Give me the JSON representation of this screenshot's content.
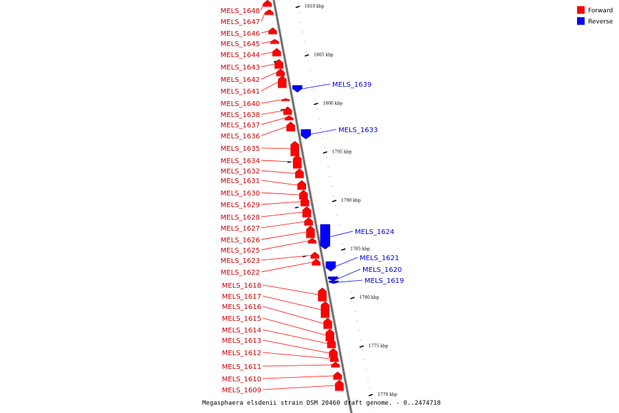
{
  "colors": {
    "forward": "#ff0000",
    "reverse": "#0000ff",
    "label_forward": "#cc0000",
    "label_reverse": "#0000cc",
    "backbone": "#888888"
  },
  "legend": [
    {
      "name": "Forward",
      "color": "#ff0000"
    },
    {
      "name": "Reverse",
      "color": "#0000ff"
    }
  ],
  "caption": "Megasphaera elsdenii strain DSM 20460 draft genome. - 0..2474718",
  "ticks": [
    {
      "label": "1810 kbp",
      "kbp": 1810
    },
    {
      "label": "1805 kbp",
      "kbp": 1805
    },
    {
      "label": "1800 kbp",
      "kbp": 1800
    },
    {
      "label": "1795 kbp",
      "kbp": 1795
    },
    {
      "label": "1790 kbp",
      "kbp": 1790
    },
    {
      "label": "1785 kbp",
      "kbp": 1785
    },
    {
      "label": "1780 kbp",
      "kbp": 1780
    },
    {
      "label": "1775 kbp",
      "kbp": 1775
    },
    {
      "label": "1770 kbp",
      "kbp": 1770
    }
  ],
  "forward_genes": [
    "MELS_1648",
    "MELS_1647",
    "MELS_1646",
    "MELS_1645",
    "MELS_1644",
    "MELS_1643",
    "MELS_1642",
    "MELS_1641",
    "MELS_1640",
    "MELS_1638",
    "MELS_1637",
    "MELS_1636",
    "MELS_1635",
    "MELS_1634",
    "MELS_1632",
    "MELS_1631",
    "MELS_1630",
    "MELS_1629",
    "MELS_1628",
    "MELS_1627",
    "MELS_1626",
    "MELS_1625",
    "MELS_1623",
    "MELS_1622",
    "MELS_1618",
    "MELS_1617",
    "MELS_1616",
    "MELS_1615",
    "MELS_1614",
    "MELS_1613",
    "MELS_1612",
    "MELS_1611",
    "MELS_1610",
    "MELS_1609"
  ],
  "reverse_genes": [
    "MELS_1639",
    "MELS_1633",
    "MELS_1624",
    "MELS_1621",
    "MELS_1620",
    "MELS_1619"
  ]
}
